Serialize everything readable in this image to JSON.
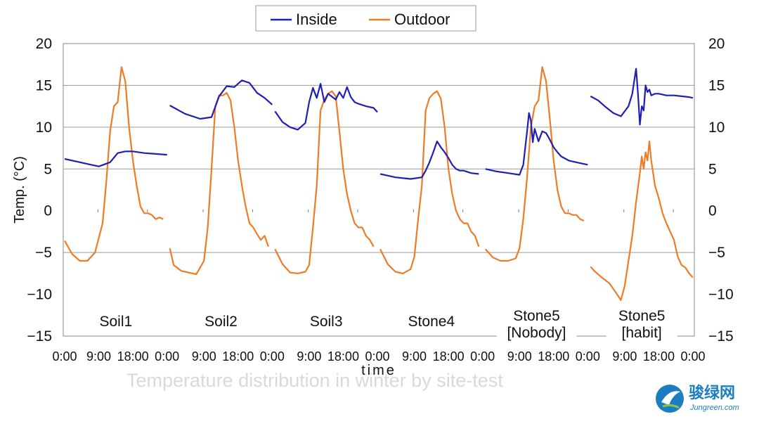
{
  "chart_data": {
    "type": "line",
    "xlabel": "time",
    "ylabel": "Temp. (°C)",
    "ylim": [
      -15,
      20
    ],
    "yticks": [
      20,
      15,
      10,
      5,
      0,
      -5,
      -10,
      -15
    ],
    "x_tick_labels": [
      "0:00",
      "9:00",
      "18:00"
    ],
    "gridlines": [
      15,
      10,
      5,
      -5
    ],
    "legend": {
      "placement": "top-center",
      "entries": [
        {
          "name": "Inside",
          "color": "#1f1fb4"
        },
        {
          "name": "Outdoor",
          "color": "#ee7b26"
        }
      ]
    },
    "series_colors": {
      "Inside": "#1f1fb4",
      "Outdoor": "#ee7b26"
    },
    "panels": [
      {
        "label": [
          "Soil1"
        ],
        "inside_x": [
          0,
          3,
          6,
          9,
          12,
          14,
          16,
          18,
          21,
          24,
          27
        ],
        "inside_y": [
          6.2,
          5.9,
          5.6,
          5.3,
          5.8,
          6.9,
          7.1,
          7.1,
          6.9,
          6.8,
          6.7
        ],
        "outdoor_x": [
          0,
          2,
          4,
          6,
          8,
          10,
          11,
          12,
          13,
          14,
          15,
          16,
          17,
          18,
          19,
          20,
          21,
          22,
          23,
          24,
          25,
          26
        ],
        "outdoor_y": [
          -3.6,
          -5.2,
          -6.0,
          -6.0,
          -5.0,
          -1.5,
          3.5,
          9.5,
          12.5,
          13.0,
          17.2,
          15.5,
          10.0,
          6.0,
          3.0,
          0.5,
          -0.3,
          -0.3,
          -0.5,
          -1.0,
          -0.8,
          -1.0
        ]
      },
      {
        "label": [
          "Soil2"
        ],
        "inside_x": [
          0,
          4,
          8,
          11,
          13,
          15,
          17,
          19,
          21,
          23,
          25,
          27
        ],
        "inside_y": [
          12.6,
          11.6,
          11.0,
          11.2,
          13.7,
          14.9,
          14.8,
          15.6,
          15.3,
          14.1,
          13.5,
          12.7
        ],
        "outdoor_x": [
          0,
          1,
          3,
          5,
          7,
          9,
          10,
          11,
          12,
          13,
          14,
          15,
          16,
          17,
          18,
          19,
          20,
          21,
          22,
          23,
          24,
          25,
          26
        ],
        "outdoor_y": [
          -4.5,
          -6.5,
          -7.2,
          -7.4,
          -7.6,
          -6.0,
          -2.0,
          5.0,
          12.5,
          13.8,
          13.8,
          14.1,
          13.2,
          10.0,
          6.0,
          3.0,
          0.5,
          -1.5,
          -2.0,
          -2.8,
          -3.5,
          -3.0,
          -4.3
        ]
      },
      {
        "label": [
          "Soil3"
        ],
        "inside_x": [
          0,
          2,
          4,
          6,
          8,
          9,
          10,
          11,
          12,
          13,
          14,
          16,
          17,
          18,
          19,
          20,
          21,
          22,
          24,
          26,
          27
        ],
        "inside_y": [
          11.9,
          10.6,
          10.0,
          9.7,
          10.5,
          13.0,
          14.7,
          13.5,
          15.2,
          13.0,
          14.0,
          13.3,
          14.2,
          13.5,
          14.8,
          13.6,
          13.0,
          12.8,
          12.5,
          12.3,
          11.8
        ],
        "outdoor_x": [
          0,
          2,
          4,
          6,
          8,
          9,
          10,
          11,
          12,
          13,
          14,
          15,
          16,
          17,
          18,
          19,
          20,
          21,
          22,
          23,
          24,
          25,
          26
        ],
        "outdoor_y": [
          -4.6,
          -6.4,
          -7.4,
          -7.5,
          -7.3,
          -6.5,
          -2.0,
          3.0,
          12.0,
          13.3,
          14.0,
          14.3,
          13.7,
          9.5,
          5.0,
          2.0,
          0.0,
          -1.5,
          -2.0,
          -2.0,
          -3.0,
          -3.5,
          -4.3
        ]
      },
      {
        "label": [
          "Stone4"
        ],
        "inside_x": [
          0,
          4,
          8,
          11,
          12,
          13,
          14,
          15,
          16,
          17,
          18,
          19,
          20,
          21,
          22,
          24,
          26
        ],
        "inside_y": [
          4.4,
          4.0,
          3.8,
          4.0,
          4.8,
          5.8,
          7.0,
          8.3,
          7.6,
          7.0,
          6.3,
          5.5,
          5.0,
          4.8,
          4.8,
          4.5,
          4.4
        ],
        "outdoor_x": [
          0,
          2,
          4,
          6,
          8,
          9,
          10,
          11,
          12,
          13,
          14,
          15,
          16,
          17,
          18,
          19,
          20,
          21,
          22,
          23,
          24,
          25,
          26
        ],
        "outdoor_y": [
          -4.6,
          -6.4,
          -7.3,
          -7.5,
          -7.0,
          -5.5,
          -1.0,
          3.0,
          12.0,
          13.5,
          14.0,
          14.3,
          13.4,
          10.0,
          5.0,
          2.0,
          0.0,
          -1.0,
          -1.5,
          -1.5,
          -2.5,
          -3.0,
          -4.3
        ]
      },
      {
        "label": [
          "Stone5",
          "[Nobody]"
        ],
        "inside_x": [
          0,
          3,
          6,
          9,
          10,
          11,
          11.5,
          12,
          12.5,
          13,
          14,
          15,
          16,
          17,
          18,
          19,
          20,
          22,
          24,
          26,
          27
        ],
        "inside_y": [
          5.0,
          4.7,
          4.5,
          4.3,
          5.5,
          9.5,
          11.7,
          10.8,
          8.2,
          9.8,
          8.3,
          9.5,
          9.3,
          8.5,
          7.6,
          7.0,
          6.5,
          6.0,
          5.8,
          5.6,
          5.5
        ],
        "outdoor_x": [
          0,
          2,
          4,
          6,
          8,
          9,
          10,
          11,
          12,
          13,
          14,
          15,
          16,
          17,
          18,
          19,
          20,
          21,
          22,
          23,
          24,
          25,
          26
        ],
        "outdoor_y": [
          -4.6,
          -5.6,
          -6.0,
          -6.0,
          -5.7,
          -4.5,
          -1.0,
          4.0,
          10.0,
          12.5,
          13.2,
          17.2,
          15.5,
          11.0,
          6.0,
          2.5,
          0.5,
          -0.3,
          -0.3,
          -0.5,
          -0.5,
          -1.0,
          -1.2
        ]
      },
      {
        "label": [
          "Stone5",
          "[habit]"
        ],
        "inside_x": [
          0,
          2,
          4,
          6,
          8,
          10,
          11,
          12,
          12.5,
          13,
          13.5,
          14,
          14.5,
          15,
          15.5,
          16,
          17,
          18,
          20,
          22,
          24,
          26,
          27
        ],
        "inside_y": [
          13.7,
          13.2,
          12.4,
          11.7,
          11.3,
          12.5,
          14.0,
          17.0,
          14.0,
          10.3,
          12.5,
          12.0,
          15.0,
          14.2,
          14.5,
          13.8,
          14.0,
          14.0,
          13.8,
          13.8,
          13.7,
          13.6,
          13.5
        ],
        "outdoor_x": [
          0,
          1,
          3,
          5,
          7,
          8,
          9,
          10,
          11,
          12,
          13,
          13.5,
          14,
          14.5,
          15,
          15.5,
          16,
          17,
          18,
          19,
          20,
          21,
          22,
          23,
          24,
          25,
          26,
          27
        ],
        "outdoor_y": [
          -6.7,
          -7.2,
          -8.0,
          -8.7,
          -10.0,
          -10.7,
          -9.0,
          -6.0,
          -3.0,
          1.0,
          4.5,
          6.5,
          5.0,
          7.0,
          6.0,
          8.3,
          6.0,
          3.0,
          1.5,
          -0.3,
          -1.5,
          -2.5,
          -3.5,
          -5.5,
          -6.5,
          -6.8,
          -7.5,
          -8.0
        ]
      }
    ]
  },
  "caption": {
    "text": "Temperature distribution in winter by site-test"
  },
  "watermark": {
    "name": "骏绿网",
    "url": "Jungreen.com",
    "icon": "leaf-logo-icon"
  }
}
